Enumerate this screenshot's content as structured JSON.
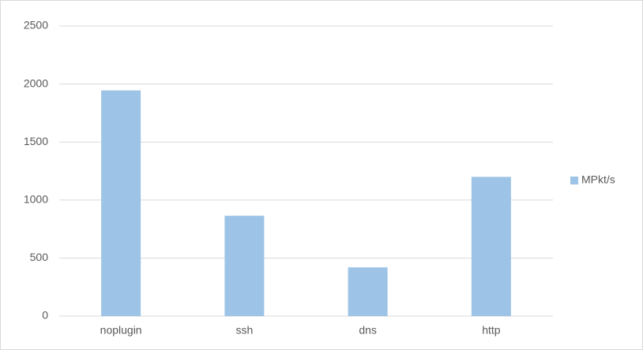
{
  "chart_data": {
    "type": "bar",
    "categories": [
      "noplugin",
      "ssh",
      "dns",
      "http"
    ],
    "series": [
      {
        "name": "MPkt/s",
        "color": "#9dc3e6",
        "values": [
          1945,
          865,
          420,
          1200
        ]
      }
    ],
    "ylim": [
      0,
      2500
    ],
    "yticks": [
      0,
      500,
      1000,
      1500,
      2000,
      2500
    ],
    "grid": true,
    "legend": "right"
  }
}
